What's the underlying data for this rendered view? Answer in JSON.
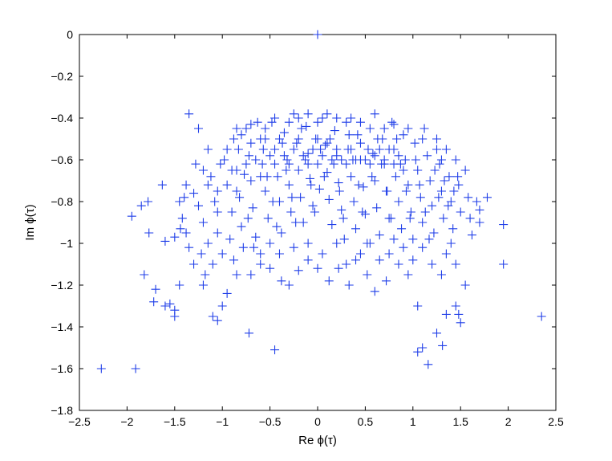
{
  "chart_data": {
    "type": "scatter",
    "title": "",
    "xlabel": "Re ϕ(τ)",
    "ylabel": "Im ϕ(τ)",
    "xlim": [
      -2.5,
      2.5
    ],
    "ylim": [
      -1.8,
      0
    ],
    "xticks": [
      -2.5,
      -2,
      -1.5,
      -1,
      -0.5,
      0,
      0.5,
      1,
      1.5,
      2,
      2.5
    ],
    "xtick_labels": [
      "−2.5",
      "−2",
      "−1.5",
      "−1",
      "−0.5",
      "0",
      "0.5",
      "1",
      "1.5",
      "2",
      "2.5"
    ],
    "yticks": [
      0,
      -0.2,
      -0.4,
      -0.6,
      -0.8,
      -1,
      -1.2,
      -1.4,
      -1.6,
      -1.8
    ],
    "ytick_labels": [
      "0",
      "−0.2",
      "−0.4",
      "−0.6",
      "−0.8",
      "−1",
      "−1.2",
      "−1.4",
      "−1.6",
      "−1.8"
    ],
    "grid": false,
    "legend": false,
    "marker": "plus",
    "color": "#1f3ee8",
    "points": [
      [
        0.0,
        0.0
      ],
      [
        -2.27,
        -1.6
      ],
      [
        -1.91,
        -1.6
      ],
      [
        -1.95,
        -0.87
      ],
      [
        -1.85,
        -0.82
      ],
      [
        -1.78,
        -0.8
      ],
      [
        -1.82,
        -1.15
      ],
      [
        -1.77,
        -0.95
      ],
      [
        -1.7,
        -1.22
      ],
      [
        -1.72,
        -1.28
      ],
      [
        -1.6,
        -1.3
      ],
      [
        -1.55,
        -1.29
      ],
      [
        -1.5,
        -1.32
      ],
      [
        -1.5,
        -1.35
      ],
      [
        -1.45,
        -1.2
      ],
      [
        -1.63,
        -0.72
      ],
      [
        -1.6,
        -0.99
      ],
      [
        -1.5,
        -0.97
      ],
      [
        -1.44,
        -0.93
      ],
      [
        -1.35,
        -0.38
      ],
      [
        -1.4,
        -0.78
      ],
      [
        -1.38,
        -0.72
      ],
      [
        -1.25,
        -0.45
      ],
      [
        -1.1,
        -1.35
      ],
      [
        -1.05,
        -1.37
      ],
      [
        -1.2,
        -1.2
      ],
      [
        -1.0,
        -1.3
      ],
      [
        -0.95,
        -1.24
      ],
      [
        -0.85,
        -1.15
      ],
      [
        -0.72,
        -1.43
      ],
      [
        -0.7,
        -1.15
      ],
      [
        -0.6,
        -1.05
      ],
      [
        -0.45,
        -1.51
      ],
      [
        -0.38,
        -1.18
      ],
      [
        -0.3,
        -1.2
      ],
      [
        -0.2,
        -1.13
      ],
      [
        -0.1,
        -1.0
      ],
      [
        0.12,
        -1.18
      ],
      [
        0.22,
        -1.12
      ],
      [
        0.33,
        -1.2
      ],
      [
        0.45,
        -1.05
      ],
      [
        0.52,
        -1.15
      ],
      [
        0.6,
        -1.23
      ],
      [
        0.72,
        -1.18
      ],
      [
        0.85,
        -1.1
      ],
      [
        0.95,
        -1.15
      ],
      [
        1.05,
        -1.3
      ],
      [
        1.05,
        -1.52
      ],
      [
        1.1,
        -1.5
      ],
      [
        1.16,
        -1.58
      ],
      [
        1.25,
        -1.43
      ],
      [
        1.31,
        -1.49
      ],
      [
        1.35,
        -1.34
      ],
      [
        1.45,
        -1.3
      ],
      [
        1.5,
        -1.38
      ],
      [
        1.48,
        -1.34
      ],
      [
        1.55,
        -1.2
      ],
      [
        1.45,
        -1.1
      ],
      [
        1.4,
        -1.0
      ],
      [
        1.62,
        -0.96
      ],
      [
        1.67,
        -0.8
      ],
      [
        1.7,
        -0.84
      ],
      [
        1.78,
        -0.78
      ],
      [
        1.7,
        -0.9
      ],
      [
        1.95,
        -0.91
      ],
      [
        1.95,
        -1.1
      ],
      [
        2.35,
        -1.35
      ],
      [
        -1.3,
        -0.76
      ],
      [
        -1.25,
        -0.82
      ],
      [
        -1.2,
        -0.9
      ],
      [
        -1.15,
        -0.55
      ],
      [
        -1.12,
        -0.68
      ],
      [
        -1.08,
        -0.8
      ],
      [
        -1.05,
        -0.95
      ],
      [
        -1.0,
        -1.05
      ],
      [
        -0.98,
        -0.6
      ],
      [
        -0.95,
        -0.72
      ],
      [
        -0.9,
        -0.85
      ],
      [
        -0.88,
        -0.5
      ],
      [
        -0.85,
        -0.65
      ],
      [
        -0.82,
        -0.78
      ],
      [
        -0.8,
        -0.92
      ],
      [
        -0.78,
        -1.02
      ],
      [
        -0.75,
        -0.45
      ],
      [
        -0.72,
        -0.58
      ],
      [
        -0.7,
        -0.7
      ],
      [
        -0.68,
        -0.83
      ],
      [
        -0.65,
        -0.97
      ],
      [
        -0.6,
        -0.5
      ],
      [
        -0.58,
        -0.62
      ],
      [
        -0.55,
        -0.75
      ],
      [
        -0.52,
        -0.88
      ],
      [
        -0.5,
        -1.0
      ],
      [
        -0.48,
        -0.42
      ],
      [
        -0.45,
        -0.55
      ],
      [
        -0.42,
        -0.68
      ],
      [
        -0.4,
        -0.8
      ],
      [
        -0.38,
        -0.95
      ],
      [
        -0.35,
        -0.47
      ],
      [
        -0.32,
        -0.6
      ],
      [
        -0.3,
        -0.72
      ],
      [
        -0.28,
        -0.85
      ],
      [
        -0.25,
        -0.38
      ],
      [
        -0.22,
        -0.52
      ],
      [
        -0.2,
        -0.65
      ],
      [
        -0.18,
        -0.78
      ],
      [
        -0.15,
        -0.9
      ],
      [
        -0.12,
        -0.44
      ],
      [
        -0.1,
        -0.57
      ],
      [
        -0.08,
        -0.69
      ],
      [
        -0.05,
        -0.82
      ],
      [
        -0.02,
        -0.5
      ],
      [
        0.0,
        -0.62
      ],
      [
        0.02,
        -0.74
      ],
      [
        0.05,
        -0.4
      ],
      [
        0.08,
        -0.53
      ],
      [
        0.1,
        -0.66
      ],
      [
        0.12,
        -0.79
      ],
      [
        0.15,
        -0.91
      ],
      [
        0.18,
        -0.46
      ],
      [
        0.2,
        -0.58
      ],
      [
        0.22,
        -0.71
      ],
      [
        0.25,
        -0.84
      ],
      [
        0.28,
        -0.98
      ],
      [
        0.3,
        -0.42
      ],
      [
        0.32,
        -0.55
      ],
      [
        0.35,
        -0.68
      ],
      [
        0.38,
        -0.8
      ],
      [
        0.4,
        -0.93
      ],
      [
        0.42,
        -0.48
      ],
      [
        0.45,
        -0.6
      ],
      [
        0.48,
        -0.73
      ],
      [
        0.5,
        -0.86
      ],
      [
        0.52,
        -1.0
      ],
      [
        0.55,
        -0.45
      ],
      [
        0.58,
        -0.57
      ],
      [
        0.6,
        -0.7
      ],
      [
        0.62,
        -0.83
      ],
      [
        0.65,
        -0.96
      ],
      [
        0.68,
        -0.5
      ],
      [
        0.7,
        -0.62
      ],
      [
        0.72,
        -0.75
      ],
      [
        0.75,
        -0.88
      ],
      [
        0.78,
        -0.42
      ],
      [
        0.8,
        -0.55
      ],
      [
        0.82,
        -0.68
      ],
      [
        0.85,
        -0.8
      ],
      [
        0.88,
        -0.93
      ],
      [
        0.9,
        -0.48
      ],
      [
        0.92,
        -0.6
      ],
      [
        0.95,
        -0.72
      ],
      [
        0.98,
        -0.85
      ],
      [
        1.0,
        -0.98
      ],
      [
        1.02,
        -0.52
      ],
      [
        1.05,
        -0.65
      ],
      [
        1.08,
        -0.78
      ],
      [
        1.1,
        -0.9
      ],
      [
        1.12,
        -0.45
      ],
      [
        1.15,
        -0.58
      ],
      [
        1.18,
        -0.7
      ],
      [
        1.2,
        -0.82
      ],
      [
        1.22,
        -0.95
      ],
      [
        1.25,
        -0.5
      ],
      [
        1.28,
        -0.62
      ],
      [
        1.3,
        -0.75
      ],
      [
        1.32,
        -0.88
      ],
      [
        1.35,
        -0.55
      ],
      [
        1.38,
        -0.68
      ],
      [
        1.4,
        -0.8
      ],
      [
        1.42,
        -0.93
      ],
      [
        1.45,
        -0.6
      ],
      [
        1.48,
        -0.72
      ],
      [
        1.5,
        -0.85
      ],
      [
        1.55,
        -0.65
      ],
      [
        1.58,
        -0.78
      ],
      [
        1.6,
        -0.88
      ],
      [
        -1.45,
        -0.8
      ],
      [
        -1.42,
        -0.88
      ],
      [
        -1.38,
        -0.95
      ],
      [
        -1.35,
        -1.02
      ],
      [
        -1.3,
        -1.1
      ],
      [
        -1.28,
        -0.62
      ],
      [
        -1.22,
        -1.05
      ],
      [
        -1.18,
        -1.15
      ],
      [
        -1.15,
        -1.0
      ],
      [
        -1.1,
        -1.1
      ],
      [
        -1.05,
        -0.75
      ],
      [
        -1.02,
        -0.62
      ],
      [
        -0.92,
        -0.98
      ],
      [
        -0.88,
        -1.08
      ],
      [
        -0.83,
        -0.55
      ],
      [
        -0.77,
        -0.67
      ],
      [
        -0.73,
        -0.88
      ],
      [
        -0.67,
        -1.02
      ],
      [
        -0.63,
        -0.42
      ],
      [
        -0.57,
        -0.55
      ],
      [
        -0.53,
        -0.68
      ],
      [
        -0.47,
        -0.8
      ],
      [
        -0.43,
        -0.92
      ],
      [
        -0.37,
        -0.52
      ],
      [
        -0.33,
        -0.65
      ],
      [
        -0.27,
        -0.78
      ],
      [
        -0.23,
        -0.9
      ],
      [
        -0.17,
        -0.45
      ],
      [
        -0.13,
        -0.6
      ],
      [
        -0.07,
        -0.72
      ],
      [
        -0.03,
        -0.85
      ],
      [
        0.03,
        -0.55
      ],
      [
        0.07,
        -0.68
      ],
      [
        0.13,
        -0.5
      ],
      [
        0.17,
        -0.62
      ],
      [
        0.23,
        -0.75
      ],
      [
        0.27,
        -0.88
      ],
      [
        0.33,
        -0.48
      ],
      [
        0.37,
        -0.6
      ],
      [
        0.43,
        -0.72
      ],
      [
        0.47,
        -0.85
      ],
      [
        0.53,
        -0.55
      ],
      [
        0.57,
        -0.68
      ],
      [
        0.63,
        -0.5
      ],
      [
        0.67,
        -0.62
      ],
      [
        0.73,
        -0.75
      ],
      [
        0.77,
        -0.88
      ],
      [
        0.83,
        -0.5
      ],
      [
        0.87,
        -0.62
      ],
      [
        0.93,
        -0.75
      ],
      [
        0.97,
        -0.88
      ],
      [
        1.03,
        -0.6
      ],
      [
        1.07,
        -0.72
      ],
      [
        1.13,
        -0.85
      ],
      [
        1.17,
        -0.98
      ],
      [
        1.23,
        -0.65
      ],
      [
        1.27,
        -0.78
      ],
      [
        1.33,
        -0.7
      ],
      [
        1.37,
        -0.82
      ],
      [
        1.43,
        -0.75
      ],
      [
        1.47,
        -0.68
      ],
      [
        -1.2,
        -0.65
      ],
      [
        -1.15,
        -0.72
      ],
      [
        -1.05,
        -0.85
      ],
      [
        -0.95,
        -0.55
      ],
      [
        -0.9,
        -0.65
      ],
      [
        -0.85,
        -0.75
      ],
      [
        -0.75,
        -0.62
      ],
      [
        -0.7,
        -0.52
      ],
      [
        -0.65,
        -0.6
      ],
      [
        -0.6,
        -0.68
      ],
      [
        -0.55,
        -0.5
      ],
      [
        -0.5,
        -0.58
      ],
      [
        -0.45,
        -0.62
      ],
      [
        -0.4,
        -0.5
      ],
      [
        -0.35,
        -0.58
      ],
      [
        -0.3,
        -0.62
      ],
      [
        -0.25,
        -0.55
      ],
      [
        -0.2,
        -0.5
      ],
      [
        -0.15,
        -0.58
      ],
      [
        -0.1,
        -0.62
      ],
      [
        -0.05,
        -0.55
      ],
      [
        0.0,
        -0.5
      ],
      [
        0.05,
        -0.58
      ],
      [
        0.1,
        -0.52
      ],
      [
        0.15,
        -0.6
      ],
      [
        0.2,
        -0.55
      ],
      [
        0.25,
        -0.6
      ],
      [
        0.3,
        -0.62
      ],
      [
        0.35,
        -0.55
      ],
      [
        0.4,
        -0.6
      ],
      [
        0.45,
        -0.52
      ],
      [
        0.5,
        -0.6
      ],
      [
        0.55,
        -0.62
      ],
      [
        0.6,
        -0.58
      ],
      [
        0.65,
        -0.55
      ],
      [
        0.7,
        -0.6
      ],
      [
        0.75,
        -0.55
      ],
      [
        0.8,
        -0.62
      ],
      [
        0.85,
        -0.58
      ],
      [
        0.9,
        -0.65
      ],
      [
        -0.6,
        -1.1
      ],
      [
        -0.5,
        -1.12
      ],
      [
        -0.4,
        -1.05
      ],
      [
        -0.25,
        -1.02
      ],
      [
        -0.1,
        -1.08
      ],
      [
        0.0,
        -1.12
      ],
      [
        0.05,
        -1.05
      ],
      [
        0.2,
        -1.0
      ],
      [
        0.3,
        -1.1
      ],
      [
        0.4,
        -1.08
      ],
      [
        0.55,
        -1.0
      ],
      [
        0.65,
        -1.08
      ],
      [
        0.75,
        -1.05
      ],
      [
        0.8,
        -0.98
      ],
      [
        0.9,
        -1.02
      ],
      [
        1.0,
        -1.08
      ],
      [
        1.1,
        -1.02
      ],
      [
        1.2,
        -1.1
      ],
      [
        1.3,
        -1.15
      ],
      [
        1.35,
        -1.05
      ],
      [
        -0.85,
        -0.45
      ],
      [
        -0.8,
        -0.48
      ],
      [
        -0.7,
        -0.43
      ],
      [
        -0.55,
        -0.45
      ],
      [
        -0.45,
        -0.4
      ],
      [
        -0.3,
        -0.42
      ],
      [
        -0.2,
        -0.4
      ],
      [
        -0.1,
        -0.38
      ],
      [
        0.0,
        -0.42
      ],
      [
        0.1,
        -0.38
      ],
      [
        0.2,
        -0.4
      ],
      [
        0.35,
        -0.4
      ],
      [
        0.45,
        -0.42
      ],
      [
        0.6,
        -0.38
      ],
      [
        0.7,
        -0.45
      ],
      [
        0.8,
        -0.43
      ],
      [
        0.95,
        -0.45
      ],
      [
        1.1,
        -0.5
      ],
      [
        1.25,
        -0.55
      ],
      [
        1.3,
        -0.6
      ]
    ]
  }
}
